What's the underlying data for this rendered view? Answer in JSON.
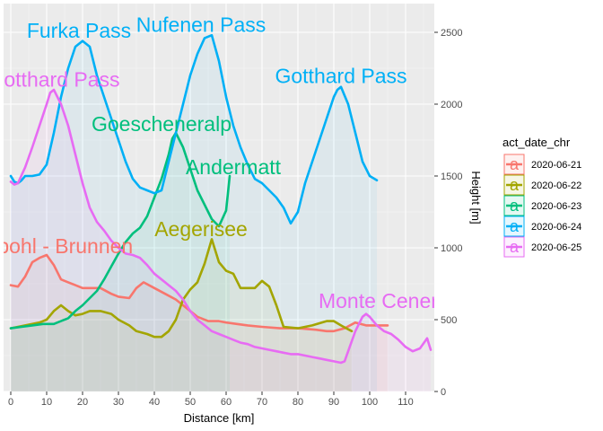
{
  "chart_data": {
    "type": "area",
    "xlabel": "Distance [km]",
    "ylabel": "Height [m]",
    "xlim": [
      -2,
      118
    ],
    "ylim": [
      0,
      2700
    ],
    "x_ticks": [
      0,
      10,
      20,
      30,
      40,
      50,
      60,
      70,
      80,
      90,
      100,
      110
    ],
    "y_ticks": [
      0,
      500,
      1000,
      1500,
      2000,
      2500
    ],
    "y_axis_position": "right",
    "grid": true,
    "legend": {
      "title": "act_date_chr",
      "position": "right"
    },
    "series": [
      {
        "name": "2020-06-21",
        "color": "#F8766D",
        "x": [
          0,
          2,
          4,
          6,
          8,
          10,
          12,
          14,
          16,
          18,
          20,
          22,
          25,
          28,
          30,
          33,
          35,
          37,
          40,
          43,
          46,
          48,
          50,
          52,
          55,
          58,
          60,
          63,
          66,
          70,
          75,
          80,
          85,
          88,
          90,
          93,
          96,
          99,
          102,
          105
        ],
        "y": [
          740,
          730,
          800,
          900,
          930,
          950,
          880,
          780,
          760,
          740,
          720,
          720,
          720,
          680,
          660,
          650,
          720,
          760,
          720,
          680,
          640,
          600,
          560,
          520,
          490,
          490,
          480,
          470,
          460,
          450,
          440,
          440,
          430,
          420,
          420,
          440,
          480,
          460,
          460,
          460
        ]
      },
      {
        "name": "2020-06-22",
        "color": "#A3A500",
        "x": [
          0,
          2,
          4,
          6,
          8,
          10,
          12,
          14,
          16,
          18,
          20,
          22,
          25,
          28,
          30,
          33,
          35,
          38,
          40,
          42,
          44,
          46,
          48,
          50,
          52,
          54,
          56,
          58,
          60,
          62,
          64,
          66,
          68,
          70,
          72,
          74,
          76,
          80,
          84,
          88,
          90,
          92,
          95
        ],
        "y": [
          440,
          450,
          460,
          470,
          480,
          500,
          560,
          600,
          560,
          530,
          540,
          560,
          560,
          540,
          500,
          460,
          420,
          400,
          380,
          380,
          420,
          500,
          640,
          710,
          760,
          890,
          1060,
          900,
          840,
          820,
          720,
          720,
          720,
          770,
          730,
          600,
          450,
          440,
          460,
          490,
          490,
          460,
          420
        ]
      },
      {
        "name": "2020-06-23",
        "color": "#00BF7D",
        "x": [
          0,
          3,
          6,
          9,
          12,
          14,
          16,
          18,
          20,
          22,
          24,
          26,
          28,
          30,
          32,
          34,
          36,
          38,
          40,
          42,
          44,
          45,
          46,
          48,
          50,
          52,
          54,
          56,
          58,
          60,
          61
        ],
        "y": [
          440,
          450,
          460,
          470,
          470,
          490,
          510,
          560,
          600,
          650,
          700,
          780,
          870,
          960,
          1040,
          1100,
          1140,
          1220,
          1350,
          1480,
          1650,
          1760,
          1800,
          1700,
          1550,
          1400,
          1300,
          1200,
          1150,
          1260,
          1500
        ]
      },
      {
        "name": "2020-06-24",
        "color": "#00B0F6",
        "x": [
          0,
          1,
          2,
          3,
          4,
          6,
          8,
          10,
          12,
          14,
          16,
          18,
          20,
          22,
          24,
          26,
          28,
          30,
          32,
          34,
          36,
          38,
          40,
          42,
          44,
          46,
          48,
          50,
          52,
          54,
          56,
          58,
          60,
          62,
          64,
          66,
          68,
          70,
          72,
          74,
          76,
          78,
          80,
          82,
          84,
          86,
          88,
          90,
          91,
          92,
          94,
          96,
          98,
          100,
          102
        ],
        "y": [
          1500,
          1460,
          1450,
          1470,
          1500,
          1500,
          1510,
          1580,
          1800,
          2050,
          2250,
          2400,
          2440,
          2400,
          2200,
          2050,
          1900,
          1750,
          1600,
          1480,
          1420,
          1400,
          1380,
          1400,
          1600,
          1800,
          2000,
          2200,
          2350,
          2460,
          2480,
          2300,
          2050,
          1850,
          1700,
          1580,
          1480,
          1450,
          1400,
          1350,
          1280,
          1170,
          1250,
          1450,
          1600,
          1750,
          1900,
          2050,
          2100,
          2120,
          2000,
          1800,
          1600,
          1500,
          1470
        ]
      },
      {
        "name": "2020-06-25",
        "color": "#E76BF3",
        "x": [
          0,
          1,
          2,
          4,
          6,
          8,
          10,
          11,
          12,
          14,
          16,
          18,
          20,
          22,
          24,
          26,
          28,
          30,
          32,
          34,
          36,
          38,
          40,
          42,
          44,
          46,
          48,
          50,
          52,
          54,
          56,
          58,
          60,
          62,
          64,
          66,
          68,
          70,
          72,
          74,
          76,
          78,
          80,
          82,
          84,
          86,
          88,
          90,
          92,
          93,
          94,
          96,
          98,
          99,
          100,
          102,
          104,
          106,
          108,
          110,
          112,
          114,
          116,
          117
        ],
        "y": [
          1460,
          1440,
          1450,
          1560,
          1700,
          1850,
          2000,
          2080,
          2100,
          2000,
          1850,
          1650,
          1450,
          1280,
          1180,
          1120,
          1050,
          1000,
          960,
          950,
          930,
          880,
          820,
          780,
          740,
          700,
          640,
          560,
          500,
          460,
          420,
          400,
          380,
          360,
          340,
          330,
          310,
          300,
          290,
          280,
          270,
          260,
          260,
          250,
          240,
          230,
          220,
          210,
          200,
          210,
          280,
          420,
          520,
          540,
          520,
          460,
          420,
          400,
          360,
          310,
          280,
          300,
          370,
          290
        ]
      }
    ],
    "annotations": [
      {
        "text": "Furka Pass",
        "series": "2020-06-24",
        "x": 19,
        "y": 2500
      },
      {
        "text": "Nufenen Pass",
        "series": "2020-06-24",
        "x": 53,
        "y": 2540
      },
      {
        "text": "Gotthard Pass",
        "series": "2020-06-24",
        "x": 92,
        "y": 2185
      },
      {
        "text": "Gotthard Pass",
        "series": "2020-06-25",
        "x": 12,
        "y": 2160
      },
      {
        "text": "Goescheneralp",
        "series": "2020-06-23",
        "x": 42,
        "y": 1850
      },
      {
        "text": "Andermatt",
        "series": "2020-06-23",
        "x": 62,
        "y": 1550
      },
      {
        "text": "Aegerisee",
        "series": "2020-06-22",
        "x": 53,
        "y": 1120
      },
      {
        "text": "Ingenbohl - Brunnen",
        "series": "2020-06-21",
        "x": 8,
        "y": 1000
      },
      {
        "text": "Monte Ceneri",
        "series": "2020-06-25",
        "x": 103,
        "y": 620
      }
    ]
  }
}
